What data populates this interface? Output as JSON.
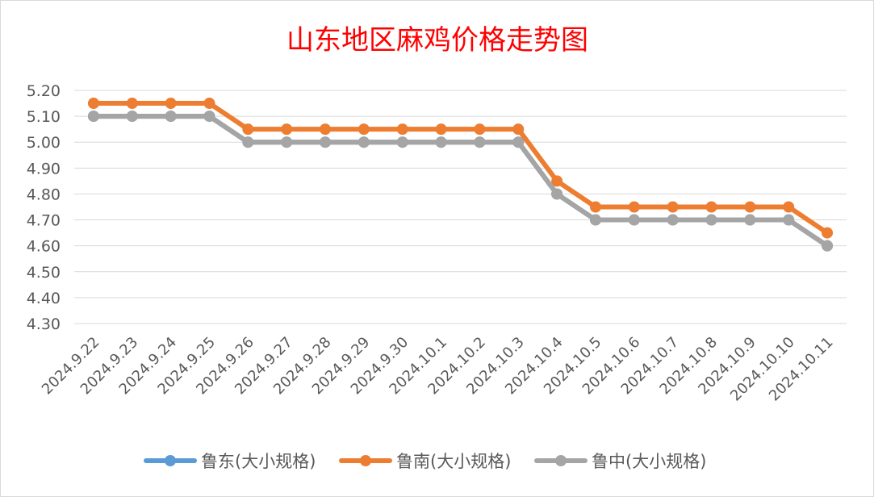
{
  "chart_data": {
    "type": "line",
    "title": "山东地区麻鸡价格走势图",
    "xlabel": "",
    "ylabel": "",
    "categories": [
      "2024.9.22",
      "2024.9.23",
      "2024.9.24",
      "2024.9.25",
      "2024.9.26",
      "2024.9.27",
      "2024.9.28",
      "2024.9.29",
      "2024.9.30",
      "2024.10.1",
      "2024.10.2",
      "2024.10.3",
      "2024.10.4",
      "2024.10.5",
      "2024.10.6",
      "2024.10.7",
      "2024.10.8",
      "2024.10.9",
      "2024.10.10",
      "2024.10.11"
    ],
    "yticks": [
      "4.30",
      "4.40",
      "4.50",
      "4.60",
      "4.70",
      "4.80",
      "4.90",
      "5.00",
      "5.10",
      "5.20"
    ],
    "ylim": [
      4.3,
      5.2
    ],
    "grid": true,
    "legend_position": "bottom",
    "series": [
      {
        "name": "鲁东(大小规格)",
        "color": "#5b9bd5",
        "values": [
          5.1,
          5.1,
          5.1,
          5.1,
          5.0,
          5.0,
          5.0,
          5.0,
          5.0,
          5.0,
          5.0,
          5.0,
          4.8,
          4.7,
          4.7,
          4.7,
          4.7,
          4.7,
          4.7,
          4.6
        ]
      },
      {
        "name": "鲁南(大小规格)",
        "color": "#ed7d31",
        "values": [
          5.15,
          5.15,
          5.15,
          5.15,
          5.05,
          5.05,
          5.05,
          5.05,
          5.05,
          5.05,
          5.05,
          5.05,
          4.85,
          4.75,
          4.75,
          4.75,
          4.75,
          4.75,
          4.75,
          4.65
        ]
      },
      {
        "name": "鲁中(大小规格)",
        "color": "#a5a5a5",
        "values": [
          5.1,
          5.1,
          5.1,
          5.1,
          5.0,
          5.0,
          5.0,
          5.0,
          5.0,
          5.0,
          5.0,
          5.0,
          4.8,
          4.7,
          4.7,
          4.7,
          4.7,
          4.7,
          4.7,
          4.6
        ]
      }
    ]
  }
}
